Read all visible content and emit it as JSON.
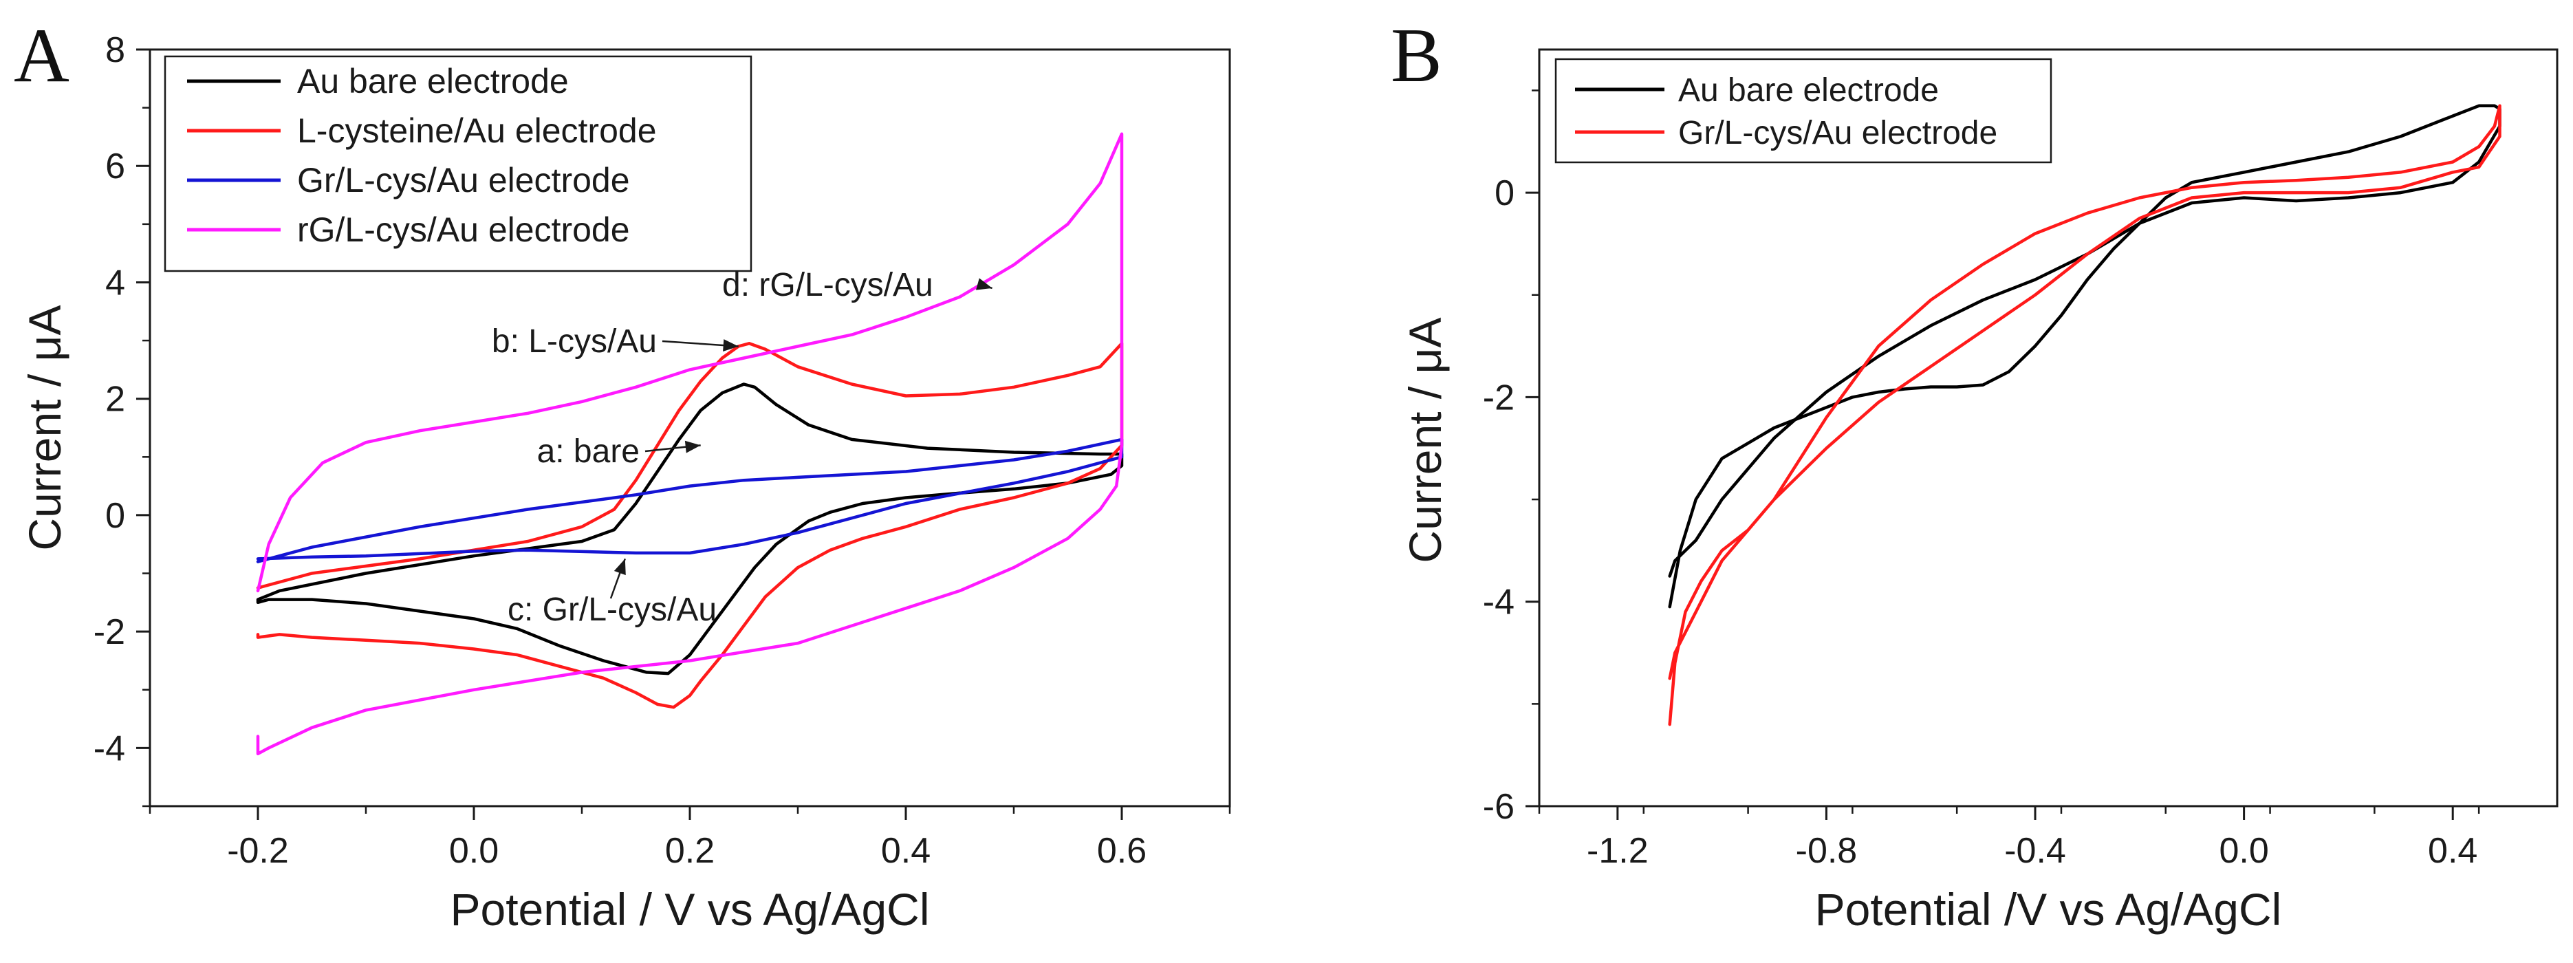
{
  "chart_data": [
    {
      "panel_label": "A",
      "type": "line",
      "xlabel": "Potential / V vs Ag/AgCl",
      "ylabel": "Current / μA",
      "xlim": [
        -0.3,
        0.7
      ],
      "ylim": [
        -5,
        8
      ],
      "xticks": [
        -0.2,
        0.0,
        0.2,
        0.4,
        0.6
      ],
      "xtick_labels": [
        "-0.2",
        "0.0",
        "0.2",
        "0.4",
        "0.6"
      ],
      "yticks": [
        -4,
        -2,
        0,
        2,
        4,
        6,
        8
      ],
      "ytick_labels": [
        "-4",
        "-2",
        "0",
        "2",
        "4",
        "6",
        "8"
      ],
      "grid": false,
      "legend_position": "top-left",
      "series": [
        {
          "name": "Au bare electrode",
          "color": "#000000",
          "x": [
            -0.2,
            -0.18,
            -0.1,
            0.0,
            0.06,
            0.1,
            0.13,
            0.15,
            0.17,
            0.19,
            0.21,
            0.23,
            0.25,
            0.26,
            0.28,
            0.31,
            0.35,
            0.42,
            0.5,
            0.58,
            0.6,
            0.6,
            0.59,
            0.55,
            0.5,
            0.45,
            0.4,
            0.36,
            0.33,
            0.31,
            0.28,
            0.26,
            0.24,
            0.22,
            0.2,
            0.18,
            0.16,
            0.12,
            0.08,
            0.04,
            0.0,
            -0.05,
            -0.1,
            -0.15,
            -0.19,
            -0.2,
            -0.2
          ],
          "y": [
            -1.45,
            -1.3,
            -1.0,
            -0.7,
            -0.55,
            -0.45,
            -0.25,
            0.2,
            0.75,
            1.3,
            1.8,
            2.1,
            2.25,
            2.2,
            1.9,
            1.55,
            1.3,
            1.15,
            1.08,
            1.05,
            1.05,
            0.85,
            0.7,
            0.55,
            0.45,
            0.38,
            0.3,
            0.2,
            0.05,
            -0.1,
            -0.5,
            -0.9,
            -1.4,
            -1.9,
            -2.4,
            -2.72,
            -2.7,
            -2.5,
            -2.25,
            -1.95,
            -1.78,
            -1.65,
            -1.52,
            -1.45,
            -1.45,
            -1.5,
            -1.45
          ]
        },
        {
          "name": "L-cysteine/Au electrode",
          "color": "#ff1a1a",
          "x": [
            -0.2,
            -0.15,
            -0.05,
            0.05,
            0.1,
            0.13,
            0.15,
            0.17,
            0.19,
            0.21,
            0.23,
            0.245,
            0.255,
            0.27,
            0.3,
            0.35,
            0.4,
            0.45,
            0.5,
            0.55,
            0.58,
            0.6,
            0.6,
            0.58,
            0.55,
            0.5,
            0.45,
            0.4,
            0.36,
            0.33,
            0.3,
            0.27,
            0.25,
            0.23,
            0.21,
            0.2,
            0.185,
            0.17,
            0.15,
            0.12,
            0.08,
            0.04,
            0.0,
            -0.05,
            -0.1,
            -0.15,
            -0.18,
            -0.2,
            -0.2
          ],
          "y": [
            -1.25,
            -1.0,
            -0.75,
            -0.45,
            -0.2,
            0.1,
            0.6,
            1.2,
            1.8,
            2.3,
            2.7,
            2.9,
            2.95,
            2.85,
            2.55,
            2.25,
            2.05,
            2.08,
            2.2,
            2.4,
            2.55,
            2.95,
            1.2,
            0.8,
            0.55,
            0.3,
            0.1,
            -0.2,
            -0.4,
            -0.6,
            -0.9,
            -1.4,
            -1.9,
            -2.4,
            -2.85,
            -3.1,
            -3.3,
            -3.25,
            -3.05,
            -2.8,
            -2.6,
            -2.4,
            -2.3,
            -2.2,
            -2.15,
            -2.1,
            -2.05,
            -2.1,
            -2.05
          ]
        },
        {
          "name": "Gr/L-cys/Au electrode",
          "color": "#1414d4",
          "x": [
            -0.2,
            -0.15,
            -0.05,
            0.05,
            0.15,
            0.2,
            0.25,
            0.3,
            0.4,
            0.5,
            0.55,
            0.6,
            0.6,
            0.55,
            0.5,
            0.4,
            0.3,
            0.25,
            0.2,
            0.15,
            0.05,
            0.0,
            -0.1,
            -0.15,
            -0.2
          ],
          "y": [
            -0.8,
            -0.55,
            -0.2,
            0.1,
            0.35,
            0.5,
            0.6,
            0.65,
            0.75,
            0.95,
            1.1,
            1.3,
            1.0,
            0.75,
            0.55,
            0.2,
            -0.3,
            -0.5,
            -0.65,
            -0.65,
            -0.6,
            -0.62,
            -0.7,
            -0.72,
            -0.75
          ]
        },
        {
          "name": "rG/L-cys/Au electrode",
          "color": "#ff1aff",
          "x": [
            -0.2,
            -0.19,
            -0.17,
            -0.14,
            -0.1,
            -0.05,
            0.0,
            0.05,
            0.1,
            0.15,
            0.2,
            0.25,
            0.3,
            0.35,
            0.4,
            0.45,
            0.5,
            0.55,
            0.58,
            0.6,
            0.6,
            0.595,
            0.58,
            0.55,
            0.5,
            0.45,
            0.4,
            0.3,
            0.2,
            0.1,
            0.0,
            -0.1,
            -0.15,
            -0.19,
            -0.2,
            -0.2
          ],
          "y": [
            -1.3,
            -0.5,
            0.3,
            0.9,
            1.25,
            1.45,
            1.6,
            1.75,
            1.95,
            2.2,
            2.5,
            2.7,
            2.9,
            3.1,
            3.4,
            3.75,
            4.3,
            5.0,
            5.7,
            6.55,
            1.2,
            0.5,
            0.1,
            -0.4,
            -0.9,
            -1.3,
            -1.6,
            -2.2,
            -2.5,
            -2.7,
            -3.0,
            -3.35,
            -3.65,
            -4.0,
            -4.1,
            -3.8
          ]
        }
      ],
      "annotations": [
        {
          "text": "d: rG/L-cys/Au",
          "arrow_to": [
            0.48,
            3.9
          ]
        },
        {
          "text": "b: L-cys/Au",
          "arrow_to": [
            0.245,
            2.9
          ]
        },
        {
          "text": "a: bare",
          "arrow_to": [
            0.21,
            1.2
          ]
        },
        {
          "text": "c: Gr/L-cys/Au",
          "arrow_to": [
            0.14,
            -0.75
          ]
        }
      ]
    },
    {
      "panel_label": "B",
      "type": "line",
      "xlabel": "Potential /V vs Ag/AgCl",
      "ylabel": "Current / μA",
      "xlim": [
        -1.35,
        0.6
      ],
      "ylim": [
        -6,
        1.4
      ],
      "xticks": [
        -1.2,
        -0.8,
        -0.4,
        0.0,
        0.4
      ],
      "xtick_labels": [
        "-1.2",
        "-0.8",
        "-0.4",
        "0.0",
        "0.4"
      ],
      "yticks": [
        -6,
        -4,
        -2,
        0
      ],
      "ytick_labels": [
        "-6",
        "-4",
        "-2",
        "0"
      ],
      "grid": false,
      "legend_position": "top-left",
      "series": [
        {
          "name": "Au bare electrode",
          "color": "#000000",
          "x": [
            -1.1,
            -1.08,
            -1.05,
            -1.0,
            -0.95,
            -0.9,
            -0.85,
            -0.8,
            -0.75,
            -0.7,
            -0.65,
            -0.6,
            -0.55,
            -0.5,
            -0.45,
            -0.4,
            -0.35,
            -0.3,
            -0.25,
            -0.2,
            -0.15,
            -0.1,
            0.0,
            0.1,
            0.2,
            0.3,
            0.4,
            0.45,
            0.48,
            0.49,
            0.49,
            0.45,
            0.4,
            0.3,
            0.2,
            0.1,
            0.0,
            -0.1,
            -0.2,
            -0.3,
            -0.4,
            -0.5,
            -0.6,
            -0.7,
            -0.8,
            -0.9,
            -1.0,
            -1.05,
            -1.09,
            -1.1
          ],
          "y": [
            -4.05,
            -3.5,
            -3.0,
            -2.6,
            -2.45,
            -2.3,
            -2.2,
            -2.1,
            -2.0,
            -1.95,
            -1.92,
            -1.9,
            -1.9,
            -1.88,
            -1.75,
            -1.5,
            -1.2,
            -0.85,
            -0.55,
            -0.3,
            -0.05,
            0.1,
            0.2,
            0.3,
            0.4,
            0.55,
            0.75,
            0.85,
            0.85,
            0.82,
            0.65,
            0.3,
            0.1,
            0.0,
            -0.05,
            -0.08,
            -0.05,
            -0.1,
            -0.3,
            -0.6,
            -0.85,
            -1.05,
            -1.3,
            -1.6,
            -1.95,
            -2.4,
            -3.0,
            -3.4,
            -3.6,
            -3.75
          ]
        },
        {
          "name": "Gr/L-cys/Au electrode",
          "color": "#ff1a1a",
          "x": [
            -1.1,
            -1.09,
            -1.07,
            -1.04,
            -1.0,
            -0.95,
            -0.9,
            -0.85,
            -0.8,
            -0.75,
            -0.7,
            -0.6,
            -0.5,
            -0.4,
            -0.3,
            -0.2,
            -0.1,
            0.0,
            0.1,
            0.2,
            0.3,
            0.4,
            0.45,
            0.48,
            0.49,
            0.49,
            0.45,
            0.4,
            0.3,
            0.2,
            0.1,
            0.0,
            -0.1,
            -0.2,
            -0.3,
            -0.4,
            -0.5,
            -0.6,
            -0.7,
            -0.8,
            -0.9,
            -1.0,
            -1.05,
            -1.09,
            -1.1
          ],
          "y": [
            -5.2,
            -4.6,
            -4.1,
            -3.8,
            -3.5,
            -3.3,
            -3.0,
            -2.6,
            -2.2,
            -1.85,
            -1.5,
            -1.05,
            -0.7,
            -0.4,
            -0.2,
            -0.05,
            0.05,
            0.1,
            0.12,
            0.15,
            0.2,
            0.3,
            0.45,
            0.65,
            0.85,
            0.55,
            0.25,
            0.2,
            0.05,
            0.0,
            0.0,
            0.0,
            -0.05,
            -0.25,
            -0.6,
            -1.0,
            -1.35,
            -1.7,
            -2.05,
            -2.5,
            -3.0,
            -3.6,
            -4.1,
            -4.5,
            -4.75
          ]
        }
      ]
    }
  ]
}
